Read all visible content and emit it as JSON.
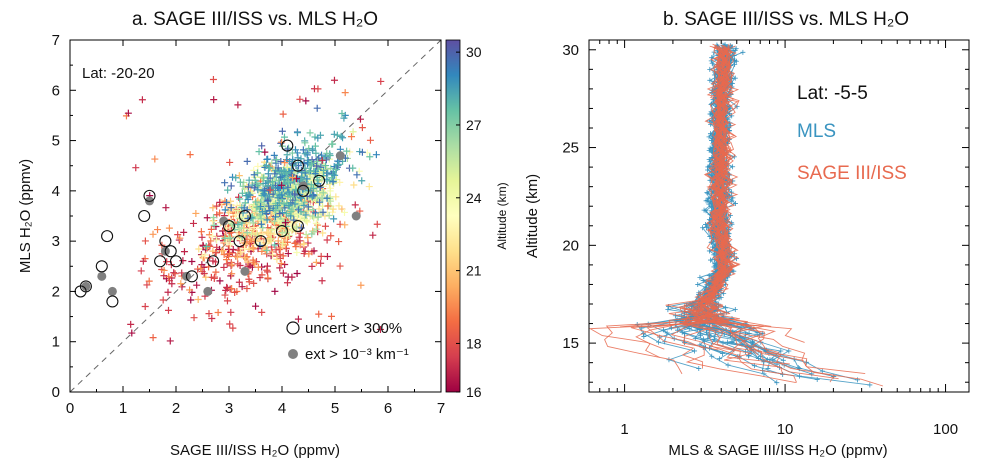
{
  "chart_data": [
    {
      "type": "scatter",
      "title": "a. SAGE III/ISS vs. MLS H₂O",
      "xlabel": "SAGE III/ISS H₂O (ppmv)",
      "ylabel": "MLS H₂O (ppmv)",
      "xlim": [
        0,
        7
      ],
      "ylim": [
        0,
        7
      ],
      "xticks": [
        0,
        1,
        2,
        3,
        4,
        5,
        6,
        7
      ],
      "yticks": [
        0,
        1,
        2,
        3,
        4,
        5,
        6,
        7
      ],
      "annotation": "Lat: -20-20",
      "reference_line": "1:1 dashed",
      "colorbar": {
        "label": "Altitude (km)",
        "range": [
          16,
          30.5
        ],
        "ticks": [
          16,
          18,
          21,
          24,
          27,
          30
        ],
        "colors": [
          "#9e0142",
          "#d53e4f",
          "#f46d43",
          "#fdae61",
          "#fee08b",
          "#ffffbf",
          "#e6f598",
          "#abdda4",
          "#66c2a5",
          "#3288bd",
          "#5e4fa2"
        ]
      },
      "legend": {
        "position": "bottom-right",
        "entries": [
          {
            "symbol": "open-circle",
            "label": "uncert > 300%"
          },
          {
            "symbol": "filled-circle",
            "label": "ext > 10⁻³ km⁻¹"
          }
        ]
      },
      "point_clusters": [
        {
          "altitude_range_km": [
            16,
            18
          ],
          "sage_center": 3.3,
          "mls_center": 2.9,
          "spread": [
            0.9,
            0.6
          ]
        },
        {
          "altitude_range_km": [
            18,
            21
          ],
          "sage_center": 3.6,
          "mls_center": 3.2,
          "spread": [
            0.6,
            0.45
          ]
        },
        {
          "altitude_range_km": [
            21,
            24
          ],
          "sage_center": 3.9,
          "mls_center": 3.6,
          "spread": [
            0.55,
            0.35
          ]
        },
        {
          "altitude_range_km": [
            24,
            27
          ],
          "sage_center": 4.1,
          "mls_center": 3.9,
          "spread": [
            0.5,
            0.35
          ]
        },
        {
          "altitude_range_km": [
            27,
            30
          ],
          "sage_center": 4.2,
          "mls_center": 4.2,
          "spread": [
            0.55,
            0.4
          ]
        }
      ],
      "filled_circle_points": [
        [
          0.3,
          2.1
        ],
        [
          0.6,
          2.3
        ],
        [
          0.8,
          2.0
        ],
        [
          1.5,
          3.8
        ],
        [
          1.8,
          2.8
        ],
        [
          2.2,
          2.3
        ],
        [
          2.6,
          2.0
        ],
        [
          2.9,
          3.4
        ],
        [
          3.3,
          2.4
        ],
        [
          4.4,
          4.1
        ],
        [
          5.1,
          4.7
        ],
        [
          5.4,
          3.5
        ]
      ],
      "open_circle_points": [
        [
          0.2,
          2.0
        ],
        [
          0.3,
          2.1
        ],
        [
          0.6,
          2.5
        ],
        [
          0.7,
          3.1
        ],
        [
          0.8,
          1.8
        ],
        [
          1.4,
          3.5
        ],
        [
          1.5,
          3.9
        ],
        [
          1.7,
          2.6
        ],
        [
          1.8,
          3.0
        ],
        [
          1.9,
          2.8
        ],
        [
          2.0,
          2.6
        ],
        [
          2.3,
          2.3
        ],
        [
          2.7,
          2.6
        ],
        [
          3.0,
          3.3
        ],
        [
          3.2,
          3.0
        ],
        [
          3.3,
          3.5
        ],
        [
          3.6,
          3.0
        ],
        [
          4.1,
          4.9
        ],
        [
          4.3,
          4.5
        ],
        [
          4.4,
          4.0
        ],
        [
          4.7,
          4.2
        ],
        [
          4.0,
          3.2
        ],
        [
          4.3,
          3.3
        ]
      ]
    },
    {
      "type": "line",
      "title": "b.  SAGE III/ISS vs. MLS H₂O",
      "xlabel": "MLS & SAGE III/ISS H₂O (ppmv)",
      "ylabel": "Altitude (km)",
      "xscale": "log",
      "xlim": [
        0.6,
        140
      ],
      "ylim": [
        12.5,
        30.5
      ],
      "xticks": [
        1,
        10,
        100
      ],
      "yticks": [
        15,
        20,
        25,
        30
      ],
      "annotation": "Lat: -5-5",
      "series": [
        {
          "name": "MLS",
          "color": "#3a94c0",
          "profile_count": 38,
          "altitude_km": [
            12.8,
            13.5,
            14.5,
            15.5,
            16.2,
            17.0,
            17.8,
            19.0,
            21.0,
            23.0,
            25.0,
            27.0,
            29.0,
            30.0
          ],
          "median_h2o_ppmv": [
            30,
            12,
            6.5,
            3.8,
            3.0,
            3.1,
            3.6,
            4.2,
            3.8,
            3.9,
            3.9,
            4.0,
            4.1,
            4.2
          ]
        },
        {
          "name": "SAGE III/ISS",
          "color": "#e86a4f",
          "profile_count": 30,
          "altitude_km": [
            12.8,
            13.5,
            14.5,
            15.5,
            16.2,
            17.0,
            17.8,
            19.0,
            21.0,
            23.0,
            25.0,
            27.0,
            29.0,
            30.0
          ],
          "median_h2o_ppmv": [
            25,
            12,
            6.0,
            3.7,
            3.1,
            3.2,
            3.7,
            4.2,
            3.9,
            4.0,
            4.0,
            4.0,
            4.1,
            4.2
          ]
        }
      ]
    }
  ]
}
